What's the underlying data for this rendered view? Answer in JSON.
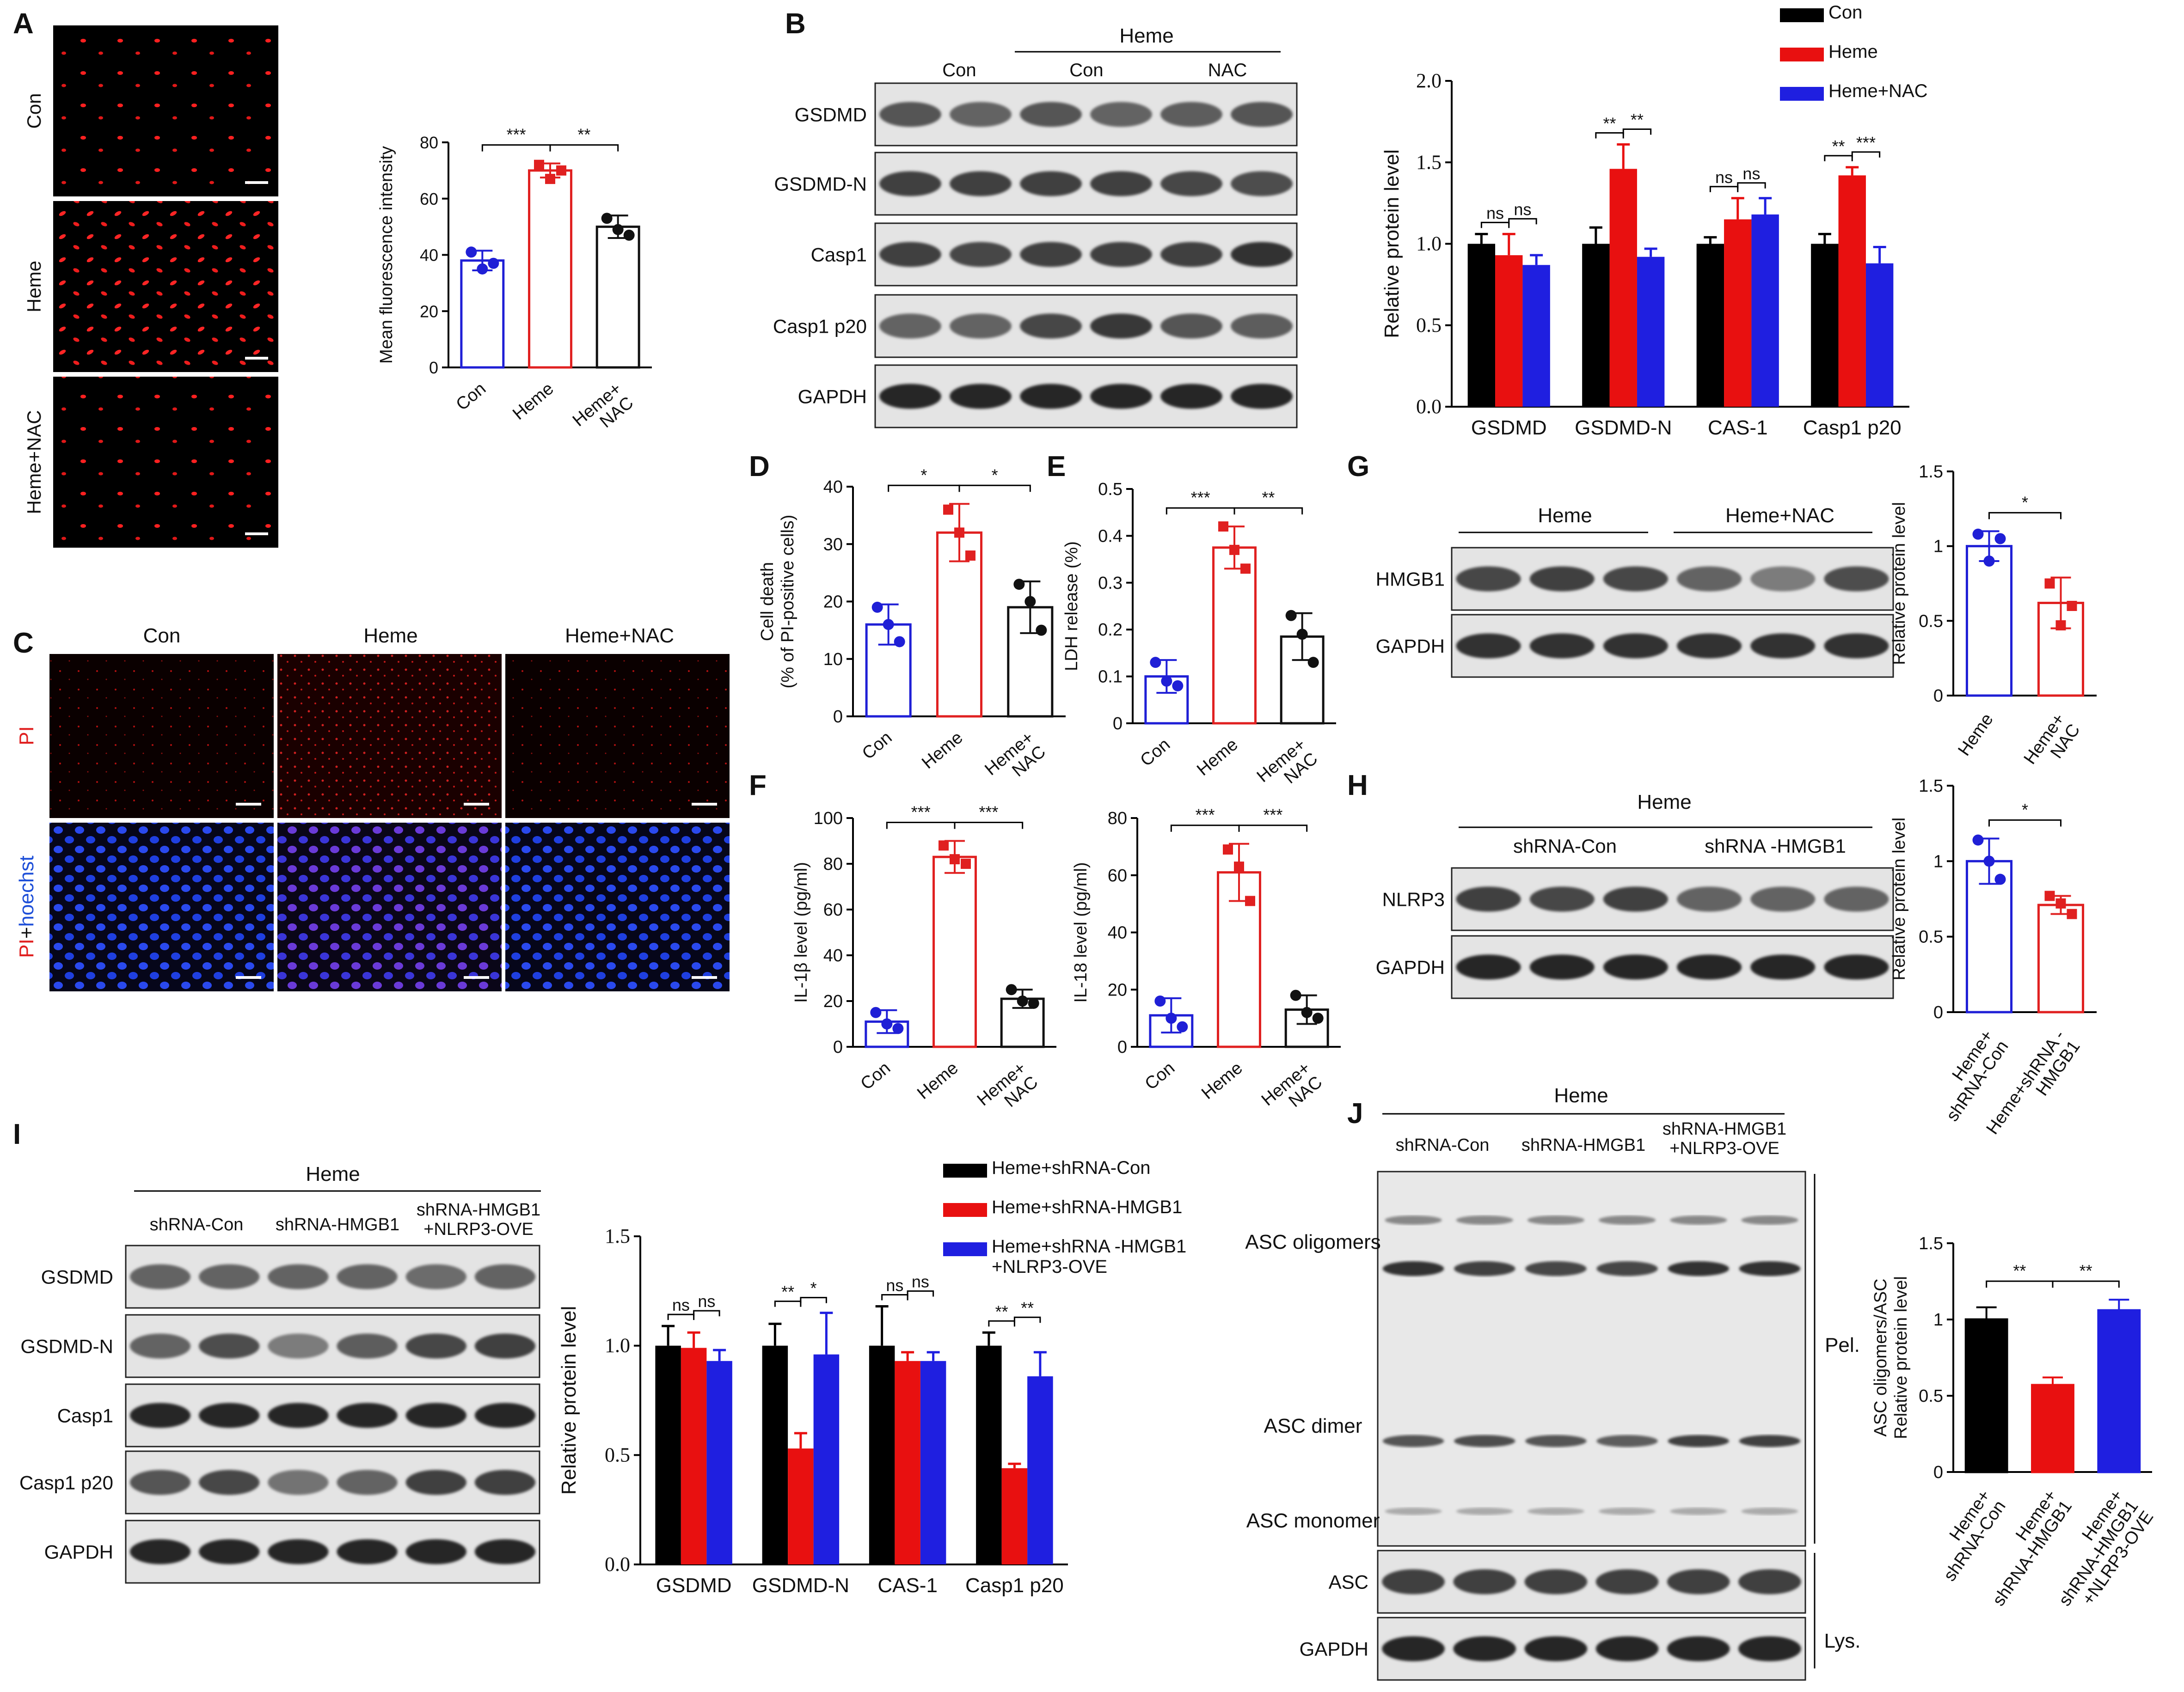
{
  "panels": {
    "A": "A",
    "B": "B",
    "C": "C",
    "D": "D",
    "E": "E",
    "F": "F",
    "G": "G",
    "H": "H",
    "I": "I",
    "J": "J"
  },
  "colors": {
    "con": "#1f1fd6",
    "heme": "#e02020",
    "nac": "#111111",
    "blue_bar": "#1f1fe0",
    "red_bar": "#e81010",
    "black_bar": "#000000",
    "pi_blue": "#1e4fd8"
  },
  "panelA": {
    "row_labels": [
      "Con",
      "Heme",
      "Heme+NAC"
    ],
    "chart": {
      "ylabel": "Mean fluorescence intensity",
      "categories": [
        "Con",
        "Heme",
        "Heme+\nNAC"
      ],
      "sig": [
        "***",
        "**"
      ]
    }
  },
  "panelB": {
    "group_label": "Heme",
    "col_labels": [
      "Con",
      "Con",
      "NAC"
    ],
    "rows": [
      "GSDMD",
      "GSDMD-N",
      "Casp1",
      "Casp1 p20",
      "GAPDH"
    ],
    "legend": [
      "Con",
      "Heme",
      "Heme+NAC"
    ],
    "chart": {
      "ylabel": "Relative protein level",
      "categories": [
        "GSDMD",
        "GSDMD-N",
        "CAS-1",
        "Casp1 p20"
      ],
      "sig": [
        [
          "ns",
          "ns"
        ],
        [
          "**",
          "**"
        ],
        [
          "ns",
          "ns"
        ],
        [
          "**",
          "***"
        ]
      ]
    }
  },
  "panelC": {
    "col_labels": [
      "Con",
      "Heme",
      "Heme+NAC"
    ],
    "row1": "PI",
    "row2_a": "PI",
    "row2_b": "+",
    "row2_c": "hoechst"
  },
  "panelD": {
    "ylabel1": "Cell death",
    "ylabel2": "(% of PI-positive cells)",
    "categories": [
      "Con",
      "Heme",
      "Heme+\nNAC"
    ],
    "sig": [
      "*",
      "*"
    ]
  },
  "panelE": {
    "ylabel": "LDH release (%)",
    "categories": [
      "Con",
      "Heme",
      "Heme+\nNAC"
    ],
    "sig": [
      "***",
      "**"
    ]
  },
  "panelF": {
    "left": {
      "ylabel": "IL-1β level (pg/ml)",
      "sig": [
        "***",
        "***"
      ]
    },
    "right": {
      "ylabel": "IL-18 level (pg/ml)",
      "sig": [
        "***",
        "***"
      ]
    },
    "categories": [
      "Con",
      "Heme",
      "Heme+\nNAC"
    ]
  },
  "panelG": {
    "groups": [
      "Heme",
      "Heme+NAC"
    ],
    "rows": [
      "HMGB1",
      "GAPDH"
    ],
    "chart": {
      "ylabel": "Relative protein level",
      "categories": [
        "Heme",
        "Heme+\nNAC"
      ],
      "sig": [
        "*"
      ]
    }
  },
  "panelH": {
    "group_label": "Heme",
    "groups": [
      "shRNA-Con",
      "shRNA -HMGB1"
    ],
    "rows": [
      "NLRP3",
      "GAPDH"
    ],
    "chart": {
      "ylabel": "Relative protein level",
      "categories": [
        "Heme+\nshRNA-Con",
        "Heme+shRNA -\nHMGB1"
      ],
      "sig": [
        "*"
      ]
    }
  },
  "panelI": {
    "group_label": "Heme",
    "col_labels": [
      "shRNA-Con",
      "shRNA-HMGB1",
      "shRNA-HMGB1\n+NLRP3-OVE"
    ],
    "rows": [
      "GSDMD",
      "GSDMD-N",
      "Casp1",
      "Casp1 p20",
      "GAPDH"
    ],
    "legend": [
      "Heme+shRNA-Con",
      "Heme+shRNA-HMGB1",
      "Heme+shRNA -HMGB1\n+NLRP3-OVE"
    ],
    "chart": {
      "ylabel": "Relative protein level",
      "categories": [
        "GSDMD",
        "GSDMD-N",
        "CAS-1",
        "Casp1 p20"
      ],
      "sig": [
        [
          "ns",
          "ns"
        ],
        [
          "**",
          "*"
        ],
        [
          "ns",
          "ns"
        ],
        [
          "**",
          "**"
        ]
      ]
    }
  },
  "panelJ": {
    "group_label": "Heme",
    "col_labels": [
      "shRNA-Con",
      "shRNA-HMGB1",
      "shRNA-HMGB1\n+NLRP3-OVE"
    ],
    "blot_labels": [
      "ASC oligomers",
      "ASC dimer",
      "ASC monomer"
    ],
    "lower_rows": [
      "ASC",
      "GAPDH"
    ],
    "side_labels": [
      "Pel.",
      "Lys."
    ],
    "chart": {
      "ylabel1": "ASC oligomers/ASC",
      "ylabel2": "Relative protein level",
      "categories": [
        "Heme+\nshRNA-Con",
        "Heme+\nshRNA-HMGB1",
        "Heme+\nshRNA-HMGB1\n+NLRP3-OVE"
      ],
      "sig": [
        "**",
        "**"
      ]
    }
  },
  "chart_data": [
    {
      "id": "A",
      "type": "bar",
      "categories": [
        "Con",
        "Heme",
        "Heme+NAC"
      ],
      "values": [
        38,
        70,
        50
      ],
      "errors": [
        3.5,
        2.5,
        4
      ],
      "points": [
        [
          41,
          37,
          35
        ],
        [
          72,
          70,
          67
        ],
        [
          53,
          47,
          49
        ]
      ],
      "ylim": [
        0,
        80
      ],
      "yticks": [
        0,
        20,
        40,
        60,
        80
      ],
      "ylabel": "Mean fluorescence intensity"
    },
    {
      "id": "B",
      "type": "bar",
      "categories": [
        "GSDMD",
        "GSDMD-N",
        "CAS-1",
        "Casp1 p20"
      ],
      "series": [
        {
          "name": "Con",
          "values": [
            1.0,
            1.0,
            1.0,
            1.0
          ],
          "errors": [
            0.06,
            0.1,
            0.04,
            0.06
          ]
        },
        {
          "name": "Heme",
          "values": [
            0.93,
            1.46,
            1.15,
            1.42
          ],
          "errors": [
            0.13,
            0.15,
            0.13,
            0.05
          ]
        },
        {
          "name": "Heme+NAC",
          "values": [
            0.87,
            0.92,
            1.18,
            0.88
          ],
          "errors": [
            0.06,
            0.05,
            0.1,
            0.1
          ]
        }
      ],
      "ylim": [
        0,
        2.0
      ],
      "yticks": [
        0,
        0.5,
        1.0,
        1.5,
        2.0
      ],
      "ylabel": "Relative protein level"
    },
    {
      "id": "D",
      "type": "bar",
      "categories": [
        "Con",
        "Heme",
        "Heme+NAC"
      ],
      "values": [
        16,
        32,
        19
      ],
      "errors": [
        3.5,
        5,
        4.5
      ],
      "points": [
        [
          19,
          13,
          16
        ],
        [
          36,
          28,
          32
        ],
        [
          23,
          15,
          20
        ]
      ],
      "ylim": [
        0,
        40
      ],
      "yticks": [
        0,
        10,
        20,
        30,
        40
      ],
      "ylabel": "Cell death (% of PI-positive cells)"
    },
    {
      "id": "E",
      "type": "bar",
      "categories": [
        "Con",
        "Heme",
        "Heme+NAC"
      ],
      "values": [
        0.1,
        0.375,
        0.185
      ],
      "errors": [
        0.035,
        0.045,
        0.05
      ],
      "points": [
        [
          0.13,
          0.08,
          0.09
        ],
        [
          0.42,
          0.33,
          0.37
        ],
        [
          0.23,
          0.13,
          0.19
        ]
      ],
      "ylim": [
        0,
        0.5
      ],
      "yticks": [
        0,
        0.1,
        0.2,
        0.3,
        0.4,
        0.5
      ],
      "ylabel": "LDH release (%)"
    },
    {
      "id": "F1",
      "type": "bar",
      "categories": [
        "Con",
        "Heme",
        "Heme+NAC"
      ],
      "values": [
        11,
        83,
        21
      ],
      "errors": [
        5,
        7,
        4
      ],
      "points": [
        [
          15,
          8,
          10
        ],
        [
          88,
          80,
          82
        ],
        [
          25,
          19,
          20
        ]
      ],
      "ylim": [
        0,
        100
      ],
      "yticks": [
        0,
        20,
        40,
        60,
        80,
        100
      ],
      "ylabel": "IL-1β level (pg/ml)"
    },
    {
      "id": "F2",
      "type": "bar",
      "categories": [
        "Con",
        "Heme",
        "Heme+NAC"
      ],
      "values": [
        11,
        61,
        13
      ],
      "errors": [
        6,
        10,
        5
      ],
      "points": [
        [
          16,
          7,
          10
        ],
        [
          69,
          51,
          63
        ],
        [
          18,
          10,
          12
        ]
      ],
      "ylim": [
        0,
        80
      ],
      "yticks": [
        0,
        20,
        40,
        60,
        80
      ],
      "ylabel": "IL-18 level (pg/ml)"
    },
    {
      "id": "G",
      "type": "bar",
      "categories": [
        "Heme",
        "Heme+NAC"
      ],
      "values": [
        1.0,
        0.62
      ],
      "errors": [
        0.1,
        0.17
      ],
      "points": [
        [
          1.08,
          1.05,
          0.9
        ],
        [
          0.75,
          0.6,
          0.47
        ]
      ],
      "ylim": [
        0,
        1.5
      ],
      "yticks": [
        0,
        0.5,
        1.0,
        1.5
      ],
      "ylabel": "Relative protein level"
    },
    {
      "id": "H",
      "type": "bar",
      "categories": [
        "Heme+shRNA-Con",
        "Heme+shRNA -HMGB1"
      ],
      "values": [
        1.0,
        0.71
      ],
      "errors": [
        0.15,
        0.06
      ],
      "points": [
        [
          1.14,
          0.88,
          1.0
        ],
        [
          0.77,
          0.65,
          0.72
        ]
      ],
      "ylim": [
        0,
        1.5
      ],
      "yticks": [
        0,
        0.5,
        1.0,
        1.5
      ],
      "ylabel": "Relative protein level"
    },
    {
      "id": "I",
      "type": "bar",
      "categories": [
        "GSDMD",
        "GSDMD-N",
        "CAS-1",
        "Casp1 p20"
      ],
      "series": [
        {
          "name": "Heme+shRNA-Con",
          "values": [
            1.0,
            1.0,
            1.0,
            1.0
          ],
          "errors": [
            0.09,
            0.1,
            0.18,
            0.06
          ]
        },
        {
          "name": "Heme+shRNA-HMGB1",
          "values": [
            0.99,
            0.53,
            0.93,
            0.44
          ],
          "errors": [
            0.07,
            0.07,
            0.04,
            0.02
          ]
        },
        {
          "name": "Heme+shRNA -HMGB1 +NLRP3-OVE",
          "values": [
            0.93,
            0.96,
            0.93,
            0.86
          ],
          "errors": [
            0.05,
            0.19,
            0.04,
            0.11
          ]
        }
      ],
      "ylim": [
        0,
        1.5
      ],
      "yticks": [
        0,
        0.5,
        1.0,
        1.5
      ],
      "ylabel": "Relative protein level"
    },
    {
      "id": "J",
      "type": "bar",
      "categories": [
        "Heme+shRNA-Con",
        "Heme+shRNA-HMGB1",
        "Heme+shRNA-HMGB1+NLRP3-OVE"
      ],
      "values": [
        1.0,
        0.57,
        1.06
      ],
      "errors": [
        0.08,
        0.05,
        0.07
      ],
      "ylim": [
        0,
        1.5
      ],
      "yticks": [
        0,
        0.5,
        1.0,
        1.5
      ],
      "ylabel": "ASC oligomers/ASC Relative protein level"
    }
  ]
}
